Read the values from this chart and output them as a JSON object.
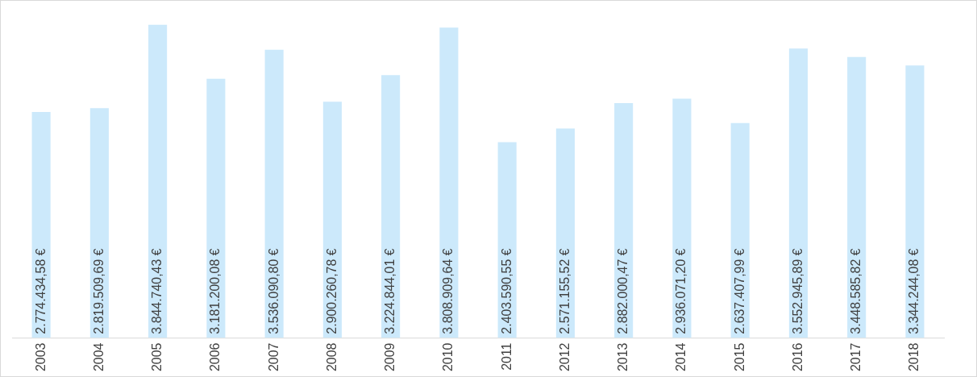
{
  "chart_data": {
    "type": "bar",
    "categories": [
      "2003",
      "2004",
      "2005",
      "2006",
      "2007",
      "2008",
      "2009",
      "2010",
      "2011",
      "2012",
      "2013",
      "2014",
      "2015",
      "2016",
      "2017",
      "2018"
    ],
    "values": [
      2774434.58,
      2819509.69,
      3844740.43,
      3181200.08,
      3536090.8,
      2900260.78,
      3224844.01,
      3808909.64,
      2403590.55,
      2571155.52,
      2882000.47,
      2936071.2,
      2637407.99,
      3552945.89,
      3448585.82,
      3344244.08
    ],
    "value_labels": [
      "2.774.434,58 €",
      "2.819.509,69 €",
      "3.844.740,43 €",
      "3.181.200,08 €",
      "3.536.090,80 €",
      "2.900.260,78 €",
      "3.224.844,01 €",
      "3.808.909,64 €",
      "2.403.590,55 €",
      "2.571.155,52 €",
      "2.882.000,47 €",
      "2.936.071,20 €",
      "2.637.407,99 €",
      "3.552.945,89 €",
      "3.448.585,82 €",
      "3.344.244,08 €"
    ],
    "color": "#cce9fb",
    "tick_labels": "x",
    "grid": false,
    "legend": false
  }
}
